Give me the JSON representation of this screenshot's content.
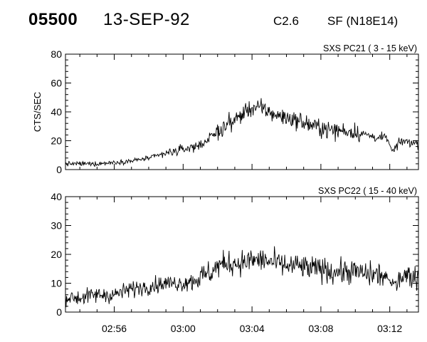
{
  "header": {
    "observation_id": "05500",
    "date": "13-SEP-92",
    "flare_class": "C2.6",
    "flare_location": "SF (N18E14)"
  },
  "chart_data": [
    {
      "type": "line",
      "title": "SXS PC21  (  3 - 15 keV)",
      "ylabel": "CTS/SEC",
      "xlabel": "",
      "xlim": [
        "02:53:10",
        "03:13:40"
      ],
      "ylim": [
        0,
        80
      ],
      "yticks": [
        0,
        20,
        40,
        60,
        80
      ],
      "xticks": [
        "02:56",
        "03:00",
        "03:04",
        "03:08",
        "03:12"
      ],
      "grid": false,
      "series": [
        {
          "x": [
            "02:53:10",
            "02:54:00",
            "02:55:00",
            "02:56:00",
            "02:57:00",
            "02:58:00",
            "02:59:00",
            "03:00:00",
            "03:01:00",
            "03:01:40",
            "03:02:00",
            "03:02:40",
            "03:03:20",
            "03:03:40",
            "03:04:00",
            "03:04:40",
            "03:05:20",
            "03:06:00",
            "03:06:40",
            "03:07:20",
            "03:08:00",
            "03:08:40",
            "03:09:20",
            "03:10:00",
            "03:10:40",
            "03:11:20",
            "03:11:50",
            "03:12:10",
            "03:12:40",
            "03:13:40"
          ],
          "values": [
            4,
            4,
            4,
            5,
            6,
            8,
            11,
            14,
            17,
            23,
            26,
            32,
            37,
            41,
            43,
            42,
            38,
            36,
            34,
            31,
            29,
            27,
            27,
            26,
            24,
            22,
            22,
            12,
            20,
            18
          ]
        }
      ]
    },
    {
      "type": "line",
      "title": "SXS PC22  ( 15 - 40 keV)",
      "ylabel": "",
      "xlabel": "",
      "xlim": [
        "02:53:10",
        "03:13:40"
      ],
      "ylim": [
        0,
        40
      ],
      "yticks": [
        0,
        10,
        20,
        30,
        40
      ],
      "xticks": [
        "02:56",
        "03:00",
        "03:04",
        "03:08",
        "03:12"
      ],
      "grid": false,
      "series": [
        {
          "x": [
            "02:53:10",
            "02:54:00",
            "02:55:00",
            "02:56:00",
            "02:57:00",
            "02:58:00",
            "02:59:00",
            "03:00:00",
            "03:01:00",
            "03:01:40",
            "03:02:00",
            "03:02:40",
            "03:03:20",
            "03:04:00",
            "03:04:40",
            "03:05:20",
            "03:06:00",
            "03:06:40",
            "03:07:20",
            "03:08:00",
            "03:08:40",
            "03:09:20",
            "03:10:00",
            "03:10:40",
            "03:11:20",
            "03:11:50",
            "03:12:10",
            "03:12:40",
            "03:13:40"
          ],
          "values": [
            5,
            5,
            6,
            6,
            8,
            9,
            10,
            10,
            12,
            14,
            16,
            17,
            17,
            18,
            18,
            17,
            16,
            16,
            15,
            15,
            14,
            14,
            14,
            13,
            13,
            12,
            9,
            13,
            12
          ]
        }
      ]
    }
  ]
}
